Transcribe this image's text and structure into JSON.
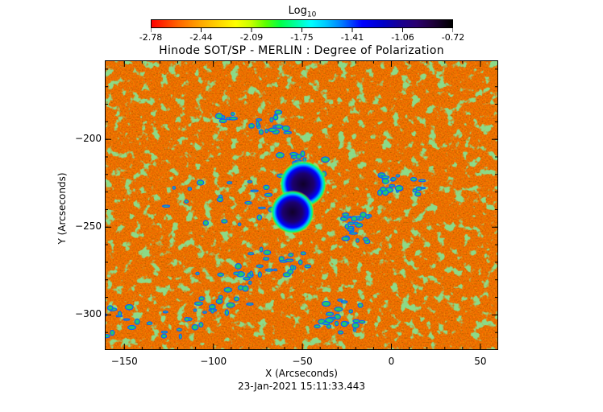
{
  "colorbar": {
    "label_prefix": "Log",
    "label_subscript": "10",
    "ticks": [
      "-2.78",
      "-2.44",
      "-2.09",
      "-1.75",
      "-1.41",
      "-1.06",
      "-0.72"
    ]
  },
  "title": "Hinode SOT/SP - MERLIN : Degree of Polarization",
  "x_axis": {
    "title": "X (Arcseconds)",
    "ticks": [
      "-150",
      "-100",
      "-50",
      "0",
      "50"
    ],
    "range": [
      -161,
      60
    ]
  },
  "y_axis": {
    "title": "Y (Arcseconds)",
    "ticks": [
      "-200",
      "-250",
      "-300"
    ],
    "range": [
      -320,
      -155
    ]
  },
  "timestamp": "23-Jan-2021 15:11:33.443",
  "features": {
    "sunspots": [
      {
        "x": -50,
        "y": -225,
        "r": 7
      },
      {
        "x": -56,
        "y": -241,
        "r": 6.5
      }
    ]
  }
}
